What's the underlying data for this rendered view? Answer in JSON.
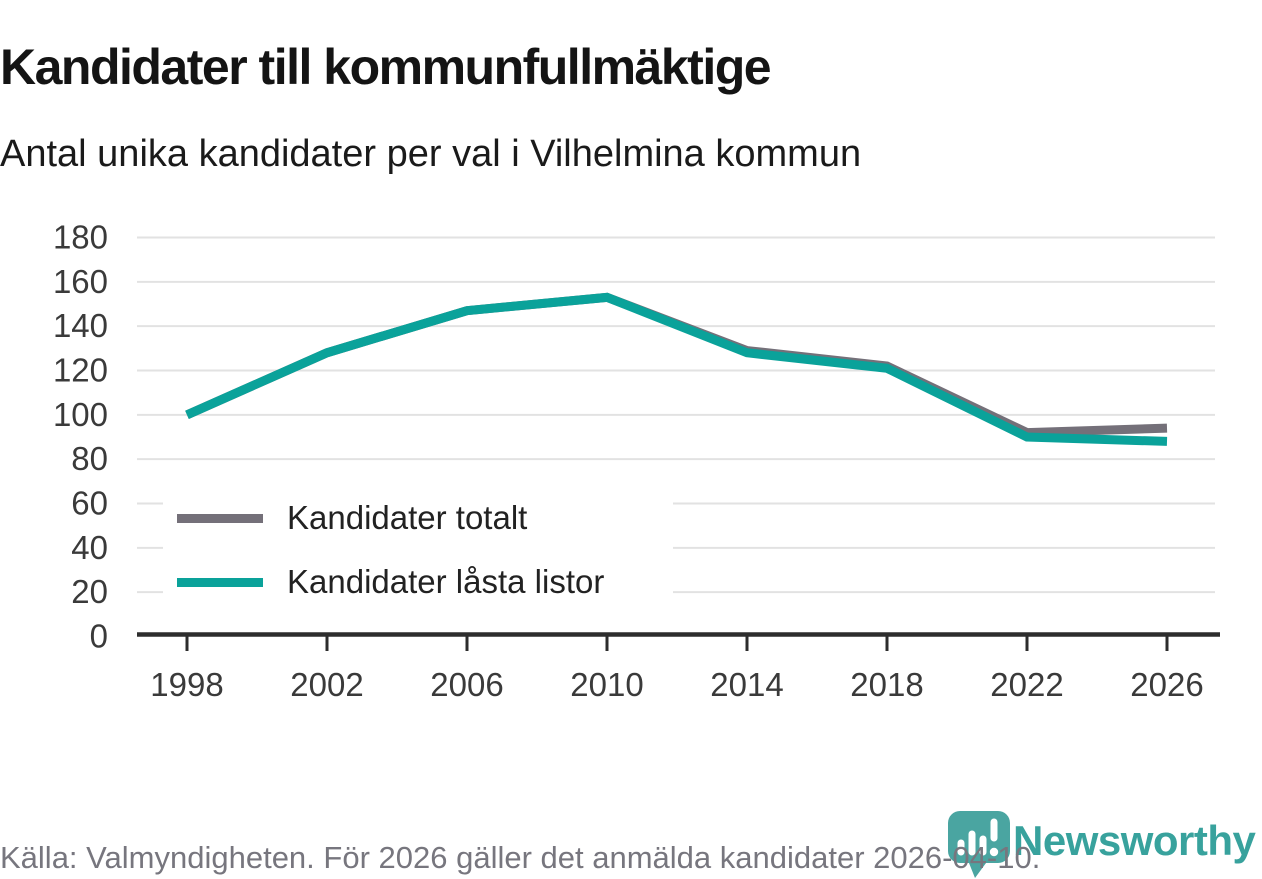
{
  "header": {
    "title": "Kandidater till kommunfullmäktige",
    "subtitle": "Antal unika kandidater per val i Vilhelmina kommun"
  },
  "chart_data": {
    "type": "line",
    "x": [
      1998,
      2002,
      2006,
      2010,
      2014,
      2018,
      2022,
      2026
    ],
    "series": [
      {
        "name": "Kandidater totalt",
        "color": "#747079",
        "values": [
          100,
          128,
          147,
          153,
          129,
          122,
          92,
          94
        ]
      },
      {
        "name": "Kandidater låsta listor",
        "color": "#0aa29a",
        "values": [
          100,
          128,
          147,
          153,
          128,
          121,
          90,
          88
        ]
      }
    ],
    "title": "Kandidater till kommunfullmäktige",
    "xlabel": "",
    "ylabel": "",
    "ylim": [
      0,
      180
    ],
    "ytick_step": 20,
    "yticks": [
      "0",
      "20",
      "40",
      "60",
      "80",
      "100",
      "120",
      "140",
      "160",
      "180"
    ],
    "xtick_labels": [
      "1998",
      "2002",
      "2006",
      "2010",
      "2014",
      "2018",
      "2022",
      "2026"
    ],
    "grid": "horizontal",
    "legend_position": "inside-top-left",
    "colors": {
      "axis": "#2d2d2d",
      "gridline": "#e2e2e2",
      "tick_label": "#3a3a3a"
    }
  },
  "footer": {
    "source_text": "Källa: Valmyndigheten. För 2026 gäller det anmälda kandidater 2026-04-10.",
    "logo_text": "Newsworthy",
    "logo_word_color": "#38a29d",
    "logo_mark_color": "#4aa5a1"
  }
}
